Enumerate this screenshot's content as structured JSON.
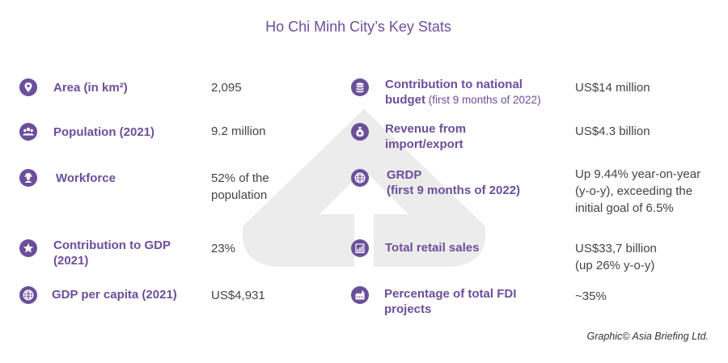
{
  "title": "Ho Chi Minh City’s Key Stats",
  "credit": "Graphic© Asia Briefing Ltd.",
  "colors": {
    "accent": "#6b4f9b",
    "icon_bg": "#6b4f9b",
    "watermark": "#ececec",
    "text": "#444444"
  },
  "left_stats": [
    {
      "icon": "location-pin-icon",
      "label_lines": [
        "Area (in km²)"
      ],
      "value_lines": [
        "2,095"
      ]
    },
    {
      "icon": "people-group-icon",
      "label_lines": [
        "Population (2021)"
      ],
      "value_lines": [
        "9.2 million"
      ]
    },
    {
      "icon": "worker-icon",
      "label_lines": [
        "Workforce"
      ],
      "value_lines": [
        "52% of the",
        "population"
      ]
    },
    {
      "icon": "star-icon",
      "label_lines": [
        "Contribution to GDP",
        "(2021)"
      ],
      "value_lines": [
        "23%"
      ]
    },
    {
      "icon": "globe-icon",
      "label_lines": [
        "GDP per capita (2021)"
      ],
      "value_lines": [
        "US$4,931"
      ]
    }
  ],
  "right_stats": [
    {
      "icon": "coin-stack-icon",
      "label_lines": [
        "Contribution to national"
      ],
      "label_tail": "budget",
      "label_sub": " (first 9 months of 2022)",
      "value_lines": [
        "US$14 million"
      ]
    },
    {
      "icon": "money-bag-icon",
      "label_lines": [
        "Revenue from",
        "import/export"
      ],
      "value_lines": [
        "US$4.3 billion"
      ]
    },
    {
      "icon": "globe-icon",
      "label_lines": [
        "GRDP",
        "(first 9 months of 2022)"
      ],
      "value_lines": [
        "Up 9.44% year-on-year",
        "(y-o-y), exceeding the",
        "initial goal of 6.5%"
      ]
    },
    {
      "icon": "bar-chart-icon",
      "label_lines": [
        "Total retail sales"
      ],
      "value_lines": [
        "US$33,7 billion",
        "(up 26% y-o-y)"
      ]
    },
    {
      "icon": "factory-icon",
      "label_lines": [
        "Percentage of total FDI",
        "projects"
      ],
      "value_lines": [
        "~35%"
      ]
    }
  ]
}
